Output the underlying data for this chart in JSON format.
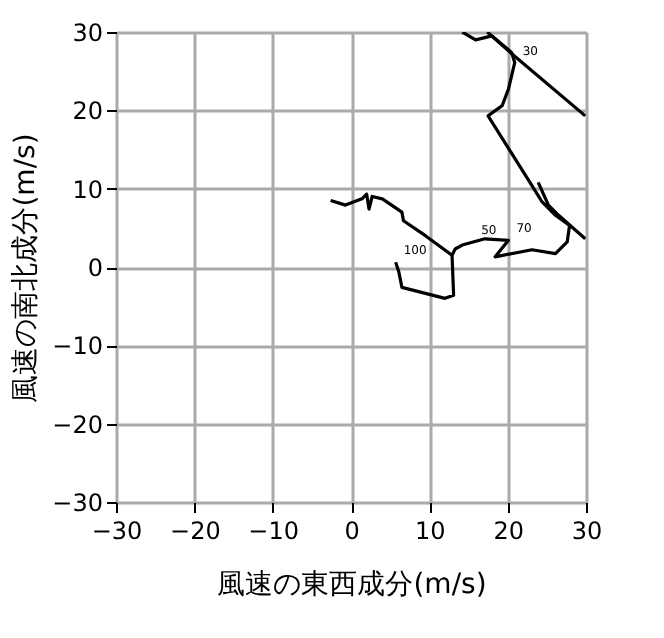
{
  "chart_data": {
    "type": "line",
    "xlabel": "風速の東西成分(m/s)",
    "ylabel": "風速の南北成分(m/s)",
    "xlim": [
      -30,
      30
    ],
    "ylim": [
      -30,
      30
    ],
    "xticks": [
      -30,
      -20,
      -10,
      0,
      10,
      20,
      30
    ],
    "yticks": [
      -30,
      -20,
      -10,
      0,
      10,
      20,
      30
    ],
    "grid": true,
    "marker": "none",
    "line_style": "solid",
    "series": [
      {
        "color": "#000000",
        "x": [
          5.7,
          6.1,
          6.5,
          12.0,
          13.1,
          12.9,
          13.3,
          14.2,
          17.1,
          20.1,
          18.4,
          23.1,
          26.1,
          27.6,
          27.9,
          26.1,
          24.4,
          23.1,
          17.5,
          19.3,
          20.1,
          20.9,
          20.5,
          18.0,
          15.9,
          14.2
        ],
        "values": [
          0.6,
          -0.6,
          -2.6,
          -4.0,
          -3.6,
          1.5,
          2.3,
          2.8,
          3.6,
          3.4,
          1.3,
          2.2,
          1.7,
          3.2,
          5.3,
          6.6,
          8.3,
          10.4,
          19.3,
          20.6,
          22.7,
          26.1,
          27.4,
          29.5,
          29.0,
          30
        ]
      },
      {
        "color": "#000000",
        "x": [
          12.9,
          9.5,
          6.7,
          6.5,
          4.0,
          2.7,
          2.3,
          2.0,
          1.4,
          -0.7,
          -2.6
        ],
        "values": [
          1.5,
          4.0,
          5.9,
          7.0,
          8.7,
          9.0,
          7.4,
          9.3,
          8.7,
          7.9,
          8.5
        ]
      },
      {
        "color": "#000000",
        "x": [
          23.9,
          25.2,
          26.5,
          29.9
        ],
        "values": [
          10.8,
          7.9,
          6.6,
          3.6
        ]
      },
      {
        "color": "#000000",
        "x": [
          17.4,
          20.9,
          29.9
        ],
        "values": [
          30,
          26.9,
          19.3
        ]
      }
    ],
    "annotations": [
      {
        "text": "30",
        "x": 20.9,
        "y": 26.1
      },
      {
        "text": "50",
        "x": 15.6,
        "y": 3.2
      },
      {
        "text": "70",
        "x": 20.1,
        "y": 3.4
      },
      {
        "text": "100",
        "x": 5.7,
        "y": 0.6
      }
    ]
  }
}
